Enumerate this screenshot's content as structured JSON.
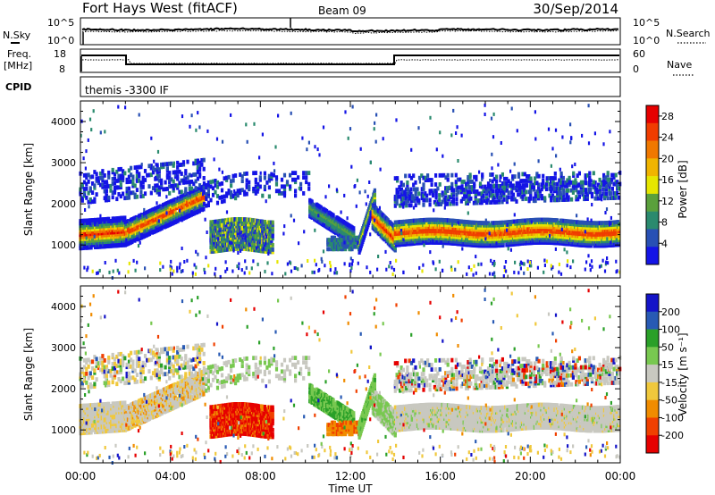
{
  "header": {
    "title": "Fort Hays West (fitACF)",
    "beam": "Beam 09",
    "date": "30/Sep/2014"
  },
  "panels": {
    "nsky_label": "N.Sky",
    "nsearch_label": "N.Search",
    "freq_label_1": "Freq.",
    "freq_label_2": "[MHz]",
    "nave_label": "Nave",
    "cpid_label": "CPID",
    "cpid_value": "themis -3300 IF",
    "noise_ticks": [
      "10^5",
      "10^0"
    ],
    "freq_ticks": [
      "18",
      "8"
    ],
    "nave_ticks": [
      "60",
      "0"
    ]
  },
  "colors": {
    "power": [
      "#1414e6",
      "#2850b4",
      "#2a8a6e",
      "#5aa03c",
      "#e6e600",
      "#f0b400",
      "#f07800",
      "#f03c00",
      "#e60000"
    ],
    "velocity": [
      "#e60000",
      "#f04000",
      "#f08c00",
      "#f0c83c",
      "#c8c8c0",
      "#78c850",
      "#2aa028",
      "#285ab4",
      "#1414c8"
    ]
  },
  "chart_data": [
    {
      "type": "heatmap",
      "title": "Power",
      "xlabel": "Time UT",
      "ylabel": "Slant Range [km]",
      "x_ticks": [
        "00:00",
        "04:00",
        "08:00",
        "12:00",
        "16:00",
        "20:00",
        "00:00"
      ],
      "xlim_hours": [
        0,
        24
      ],
      "y_ticks": [
        1000,
        2000,
        3000,
        4000
      ],
      "ylim_km": [
        200,
        4500
      ],
      "colorbar_label": "Power [dB]",
      "colorbar_ticks": [
        4,
        8,
        12,
        16,
        20,
        24,
        28
      ],
      "colorbar_range": [
        0,
        30
      ]
    },
    {
      "type": "heatmap",
      "title": "Velocity",
      "xlabel": "Time UT",
      "ylabel": "Slant Range [km]",
      "x_ticks": [
        "00:00",
        "04:00",
        "08:00",
        "12:00",
        "16:00",
        "20:00",
        "00:00"
      ],
      "xlim_hours": [
        0,
        24
      ],
      "y_ticks": [
        1000,
        2000,
        3000,
        4000
      ],
      "ylim_km": [
        200,
        4500
      ],
      "colorbar_label": "Velocity [m s⁻¹]",
      "colorbar_ticks": [
        200,
        100,
        50,
        15,
        -15,
        -50,
        -100,
        -200
      ]
    }
  ]
}
